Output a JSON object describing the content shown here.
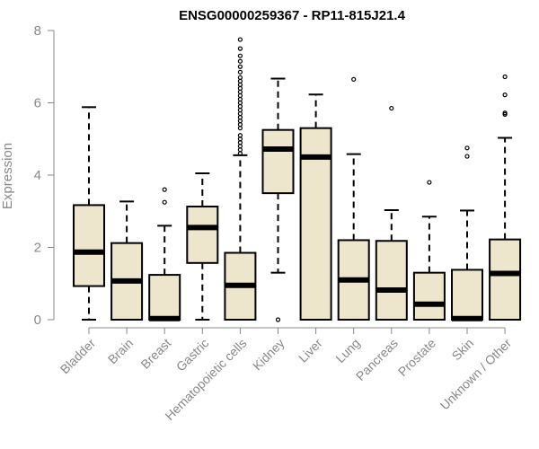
{
  "chart_data": {
    "type": "box",
    "title": "ENSG00000259367 - RP11-815J21.4",
    "xlabel": "",
    "ylabel": "Expression",
    "ylim": [
      0,
      8
    ],
    "yticks": [
      0,
      2,
      4,
      6,
      8
    ],
    "colors": {
      "box_fill": "#ede6cc",
      "stroke": "#000000",
      "axis": "#888888"
    },
    "categories": [
      "Bladder",
      "Brain",
      "Breast",
      "Gastric",
      "Hematopoietic cells",
      "Kidney",
      "Liver",
      "Lung",
      "Pancreas",
      "Prostate",
      "Skin",
      "Unknown / Other"
    ],
    "boxes": [
      {
        "name": "Bladder",
        "whisker_low": 0,
        "q1": 0.93,
        "median": 1.87,
        "q3": 3.17,
        "whisker_high": 5.88,
        "outliers": []
      },
      {
        "name": "Brain",
        "whisker_low": 0,
        "q1": 0,
        "median": 1.07,
        "q3": 2.12,
        "whisker_high": 3.27,
        "outliers": []
      },
      {
        "name": "Breast",
        "whisker_low": 0,
        "q1": 0,
        "median": 0.03,
        "q3": 1.24,
        "whisker_high": 2.6,
        "outliers": [
          3.25,
          3.6
        ]
      },
      {
        "name": "Gastric",
        "whisker_low": 0,
        "q1": 1.57,
        "median": 2.55,
        "q3": 3.13,
        "whisker_high": 4.05,
        "outliers": []
      },
      {
        "name": "Hematopoietic cells",
        "whisker_low": 0,
        "q1": 0,
        "median": 0.95,
        "q3": 1.85,
        "whisker_high": 4.55,
        "outliers": [
          4.6,
          4.7,
          4.8,
          4.9,
          5.0,
          5.1,
          5.3,
          5.4,
          5.5,
          5.6,
          5.7,
          5.8,
          5.9,
          6.0,
          6.1,
          6.2,
          6.3,
          6.4,
          6.5,
          6.6,
          6.7,
          6.85,
          7.0,
          7.15,
          7.3,
          7.5,
          7.75
        ]
      },
      {
        "name": "Kidney",
        "whisker_low": 1.3,
        "q1": 3.5,
        "median": 4.72,
        "q3": 5.25,
        "whisker_high": 6.67,
        "outliers": [
          0
        ]
      },
      {
        "name": "Liver",
        "whisker_low": 0,
        "q1": 0,
        "median": 4.5,
        "q3": 5.3,
        "whisker_high": 6.23,
        "outliers": []
      },
      {
        "name": "Lung",
        "whisker_low": 0,
        "q1": 0,
        "median": 1.1,
        "q3": 2.2,
        "whisker_high": 4.58,
        "outliers": [
          6.65
        ]
      },
      {
        "name": "Pancreas",
        "whisker_low": 0,
        "q1": 0,
        "median": 0.82,
        "q3": 2.18,
        "whisker_high": 3.03,
        "outliers": [
          5.85
        ]
      },
      {
        "name": "Prostate",
        "whisker_low": 0,
        "q1": 0,
        "median": 0.43,
        "q3": 1.3,
        "whisker_high": 2.85,
        "outliers": [
          3.8
        ]
      },
      {
        "name": "Skin",
        "whisker_low": 0,
        "q1": 0,
        "median": 0.03,
        "q3": 1.38,
        "whisker_high": 3.02,
        "outliers": [
          4.52,
          4.75
        ]
      },
      {
        "name": "Unknown / Other",
        "whisker_low": 0,
        "q1": 0,
        "median": 1.28,
        "q3": 2.22,
        "whisker_high": 5.03,
        "outliers": [
          5.68,
          5.72,
          6.22,
          6.72
        ]
      }
    ]
  }
}
